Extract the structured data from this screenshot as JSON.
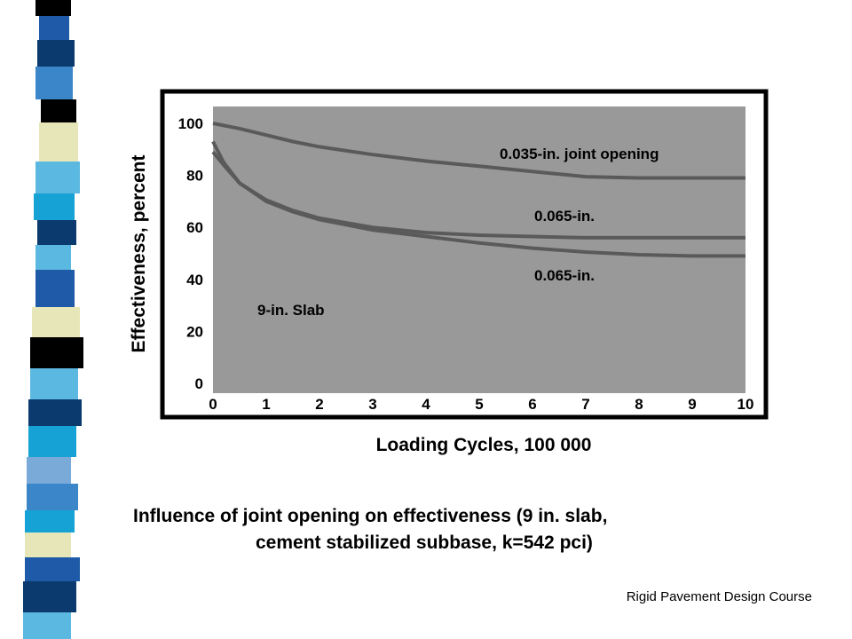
{
  "colors": {
    "plot_background": "#999999",
    "frame": "#000000",
    "curve": "#5a5a5a",
    "stripe_palette": [
      "#0a3a6e",
      "#3a86c8",
      "#17a2d6",
      "#000000",
      "#e6e6b8",
      "#1e5aa8",
      "#5bb8e0",
      "#7aaad8"
    ]
  },
  "caption": {
    "line1": "Influence of joint opening on effectiveness (9 in. slab,",
    "line2": "cement stabilized subbase, k=542 pci)"
  },
  "footer": "Rigid Pavement Design Course",
  "chart_data": {
    "type": "line",
    "title": "",
    "xlabel": "Loading Cycles, 100 000",
    "ylabel": "Effectiveness, percent",
    "xlim": [
      0,
      10
    ],
    "ylim": [
      0,
      100
    ],
    "x_ticks": [
      "0",
      "1",
      "2",
      "3",
      "4",
      "5",
      "6",
      "7",
      "8",
      "9",
      "10"
    ],
    "y_ticks": [
      "0",
      "20",
      "40",
      "60",
      "80",
      "100"
    ],
    "grid": false,
    "legend": "none",
    "annotations": [
      "0.035-in. joint opening",
      "0.065-in.",
      "0.065-in.",
      "9-in. Slab"
    ],
    "series": [
      {
        "x": [
          0,
          0.5,
          1,
          1.5,
          2,
          3,
          4,
          5,
          6,
          7,
          8,
          9,
          10
        ],
        "y": [
          100,
          98,
          95.5,
          93,
          91,
          88,
          85.5,
          83.5,
          81.5,
          79.5,
          79,
          79,
          79
        ]
      },
      {
        "x": [
          0,
          0.2,
          0.5,
          1,
          1.5,
          2,
          3,
          4,
          5,
          6,
          7,
          8,
          9,
          10
        ],
        "y": [
          93,
          85,
          77,
          70.5,
          66.5,
          63.5,
          60,
          58,
          57,
          56.5,
          56,
          56,
          56,
          56
        ]
      },
      {
        "x": [
          0,
          0.2,
          0.5,
          1,
          1.5,
          2,
          3,
          4,
          5,
          6,
          7,
          8,
          9,
          10
        ],
        "y": [
          89,
          84,
          77,
          70,
          66,
          63,
          59,
          56.5,
          54,
          52,
          50.5,
          49.5,
          49,
          49
        ]
      }
    ]
  }
}
